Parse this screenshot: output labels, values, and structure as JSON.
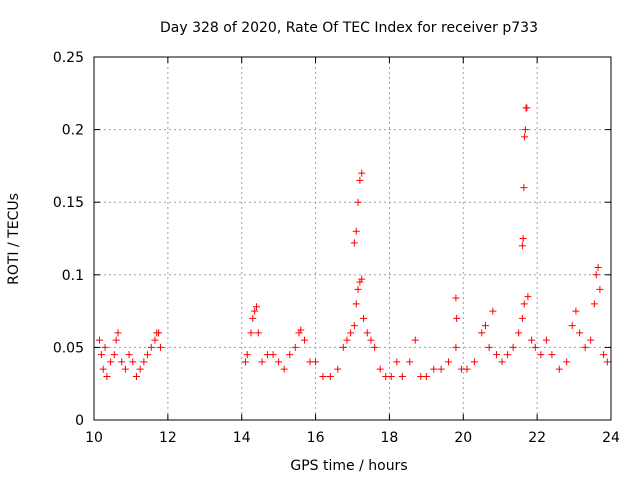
{
  "chart_data": {
    "type": "scatter",
    "title": "Day 328 of 2020, Rate Of TEC Index for receiver p733",
    "xlabel": "GPS time / hours",
    "ylabel": "ROTI / TECUs",
    "xlim": [
      10,
      24
    ],
    "ylim": [
      0,
      0.25
    ],
    "x_ticks": [
      10,
      12,
      14,
      16,
      18,
      20,
      22,
      24
    ],
    "x_tick_labels": [
      "10",
      "12",
      "14",
      "16",
      "18",
      "20",
      "22",
      "24"
    ],
    "y_ticks": [
      0,
      0.05,
      0.1,
      0.15,
      0.2,
      0.25
    ],
    "y_tick_labels": [
      "0",
      "0.05",
      "0.1",
      "0.15",
      "0.2",
      "0.25"
    ],
    "grid": true,
    "legend": "none",
    "marker": "plus",
    "marker_color": "#ff0000",
    "series": [
      {
        "points": [
          [
            10.15,
            0.055
          ],
          [
            10.2,
            0.045
          ],
          [
            10.25,
            0.035
          ],
          [
            10.3,
            0.05
          ],
          [
            10.35,
            0.03
          ],
          [
            10.45,
            0.04
          ],
          [
            10.55,
            0.045
          ],
          [
            10.6,
            0.055
          ],
          [
            10.65,
            0.06
          ],
          [
            10.75,
            0.04
          ],
          [
            10.85,
            0.035
          ],
          [
            10.95,
            0.045
          ],
          [
            11.05,
            0.04
          ],
          [
            11.15,
            0.03
          ],
          [
            11.25,
            0.035
          ],
          [
            11.35,
            0.04
          ],
          [
            11.45,
            0.045
          ],
          [
            11.55,
            0.05
          ],
          [
            11.65,
            0.055
          ],
          [
            11.7,
            0.06
          ],
          [
            11.75,
            0.06
          ],
          [
            11.8,
            0.05
          ],
          [
            14.1,
            0.04
          ],
          [
            14.15,
            0.045
          ],
          [
            14.25,
            0.06
          ],
          [
            14.3,
            0.07
          ],
          [
            14.35,
            0.075
          ],
          [
            14.4,
            0.078
          ],
          [
            14.45,
            0.06
          ],
          [
            14.55,
            0.04
          ],
          [
            14.7,
            0.045
          ],
          [
            14.85,
            0.045
          ],
          [
            15.0,
            0.04
          ],
          [
            15.15,
            0.035
          ],
          [
            15.3,
            0.045
          ],
          [
            15.45,
            0.05
          ],
          [
            15.55,
            0.06
          ],
          [
            15.6,
            0.062
          ],
          [
            15.7,
            0.055
          ],
          [
            15.85,
            0.04
          ],
          [
            16.0,
            0.04
          ],
          [
            16.2,
            0.03
          ],
          [
            16.4,
            0.03
          ],
          [
            16.6,
            0.035
          ],
          [
            16.75,
            0.05
          ],
          [
            16.85,
            0.055
          ],
          [
            16.95,
            0.06
          ],
          [
            17.05,
            0.065
          ],
          [
            17.1,
            0.08
          ],
          [
            17.15,
            0.09
          ],
          [
            17.2,
            0.095
          ],
          [
            17.25,
            0.097
          ],
          [
            17.3,
            0.07
          ],
          [
            17.4,
            0.06
          ],
          [
            17.5,
            0.055
          ],
          [
            17.6,
            0.05
          ],
          [
            17.75,
            0.035
          ],
          [
            17.9,
            0.03
          ],
          [
            18.05,
            0.03
          ],
          [
            18.2,
            0.04
          ],
          [
            18.35,
            0.03
          ],
          [
            18.55,
            0.04
          ],
          [
            18.7,
            0.055
          ],
          [
            18.85,
            0.03
          ],
          [
            19.0,
            0.03
          ],
          [
            19.2,
            0.035
          ],
          [
            19.4,
            0.035
          ],
          [
            19.6,
            0.04
          ],
          [
            19.8,
            0.05
          ],
          [
            19.95,
            0.035
          ],
          [
            20.1,
            0.035
          ],
          [
            20.3,
            0.04
          ],
          [
            20.5,
            0.06
          ],
          [
            20.6,
            0.065
          ],
          [
            20.7,
            0.05
          ],
          [
            20.8,
            0.075
          ],
          [
            20.9,
            0.045
          ],
          [
            21.05,
            0.04
          ],
          [
            21.2,
            0.045
          ],
          [
            21.35,
            0.05
          ],
          [
            21.5,
            0.06
          ],
          [
            21.6,
            0.07
          ],
          [
            21.65,
            0.08
          ],
          [
            21.75,
            0.085
          ],
          [
            21.85,
            0.055
          ],
          [
            21.95,
            0.05
          ],
          [
            22.1,
            0.045
          ],
          [
            22.25,
            0.055
          ],
          [
            22.4,
            0.045
          ],
          [
            22.6,
            0.035
          ],
          [
            22.8,
            0.04
          ],
          [
            22.95,
            0.065
          ],
          [
            23.05,
            0.075
          ],
          [
            23.15,
            0.06
          ],
          [
            23.3,
            0.05
          ],
          [
            23.45,
            0.055
          ],
          [
            23.55,
            0.08
          ],
          [
            23.6,
            0.1
          ],
          [
            23.65,
            0.105
          ],
          [
            23.7,
            0.09
          ],
          [
            23.8,
            0.045
          ],
          [
            23.9,
            0.04
          ],
          [
            17.05,
            0.122
          ],
          [
            17.1,
            0.13
          ],
          [
            17.15,
            0.15
          ],
          [
            17.2,
            0.165
          ],
          [
            17.25,
            0.17
          ],
          [
            19.8,
            0.084
          ],
          [
            19.82,
            0.07
          ],
          [
            21.6,
            0.12
          ],
          [
            21.62,
            0.125
          ],
          [
            21.64,
            0.16
          ],
          [
            21.66,
            0.195
          ],
          [
            21.68,
            0.2
          ],
          [
            21.7,
            0.215
          ],
          [
            21.72,
            0.215
          ]
        ]
      }
    ]
  }
}
